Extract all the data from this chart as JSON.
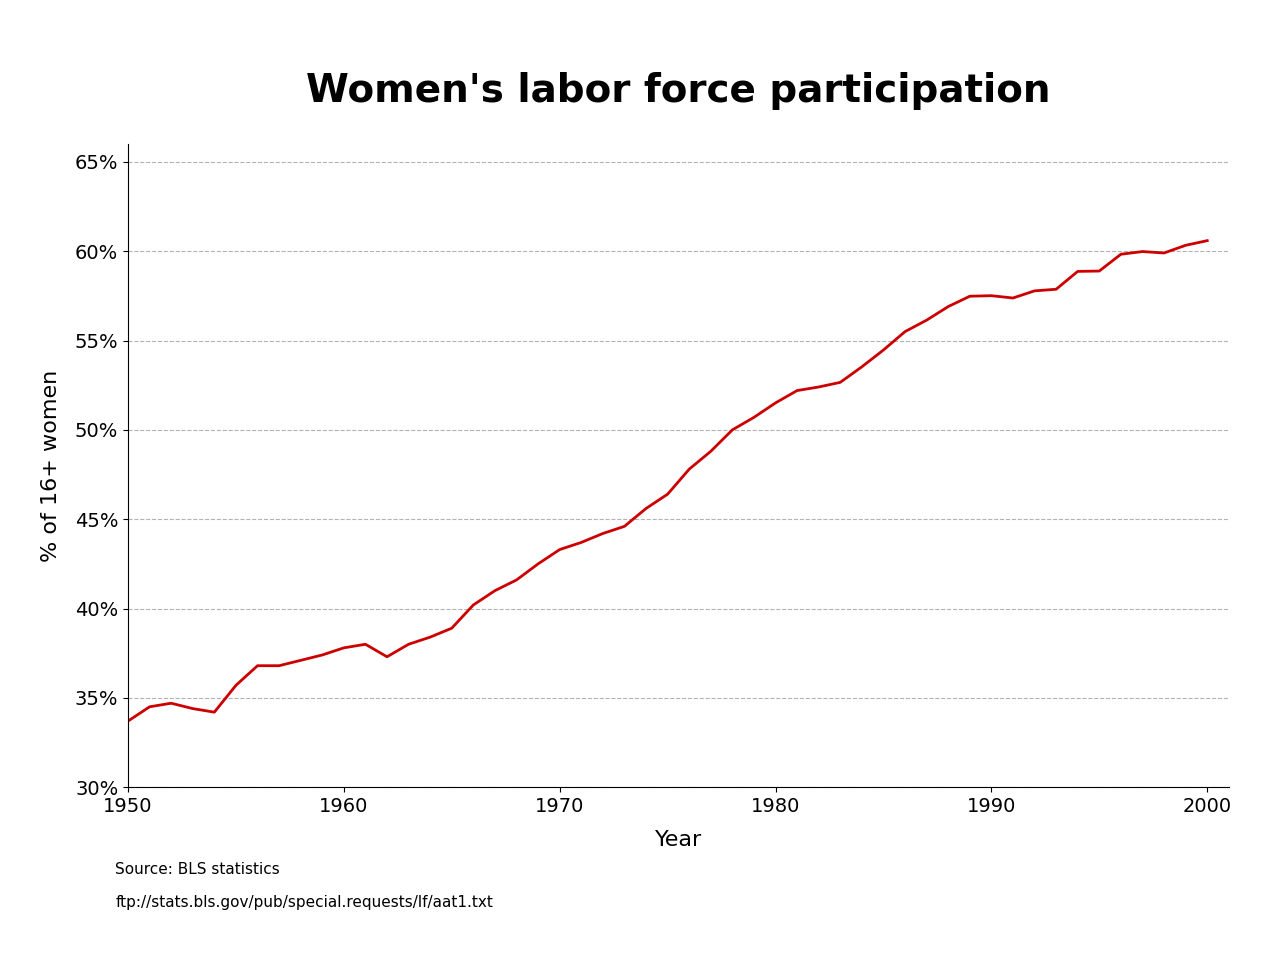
{
  "title": "Women's labor force participation",
  "xlabel": "Year",
  "ylabel": "% of 16+ women",
  "source_line1": "Source: BLS statistics",
  "source_line2": "ftp://stats.bls.gov/pub/special.requests/lf/aat1.txt",
  "line_color": "#cc0000",
  "line_width": 2.0,
  "xlim": [
    1950,
    2001
  ],
  "ylim": [
    0.3,
    0.66
  ],
  "yticks": [
    0.3,
    0.35,
    0.4,
    0.45,
    0.5,
    0.55,
    0.6,
    0.65
  ],
  "xticks": [
    1950,
    1960,
    1970,
    1980,
    1990,
    2000
  ],
  "years": [
    1950,
    1951,
    1952,
    1953,
    1954,
    1955,
    1956,
    1957,
    1958,
    1959,
    1960,
    1961,
    1962,
    1963,
    1964,
    1965,
    1966,
    1967,
    1968,
    1969,
    1970,
    1971,
    1972,
    1973,
    1974,
    1975,
    1976,
    1977,
    1978,
    1979,
    1980,
    1981,
    1982,
    1983,
    1984,
    1985,
    1986,
    1987,
    1988,
    1989,
    1990,
    1991,
    1992,
    1993,
    1994,
    1995,
    1996,
    1997,
    1998,
    1999,
    2000
  ],
  "values": [
    0.337,
    0.345,
    0.347,
    0.344,
    0.342,
    0.357,
    0.368,
    0.368,
    0.371,
    0.374,
    0.378,
    0.38,
    0.373,
    0.38,
    0.384,
    0.389,
    0.402,
    0.41,
    0.416,
    0.425,
    0.433,
    0.437,
    0.442,
    0.446,
    0.456,
    0.464,
    0.478,
    0.488,
    0.5,
    0.507,
    0.5151,
    0.522,
    0.524,
    0.5266,
    0.5353,
    0.5447,
    0.555,
    0.5614,
    0.569,
    0.5748,
    0.5751,
    0.5738,
    0.5778,
    0.5787,
    0.5887,
    0.5889,
    0.5983,
    0.5998,
    0.599,
    0.6033,
    0.6059
  ],
  "title_fontsize": 28,
  "axis_label_fontsize": 16,
  "tick_fontsize": 14,
  "source_fontsize": 11,
  "background_color": "#ffffff"
}
